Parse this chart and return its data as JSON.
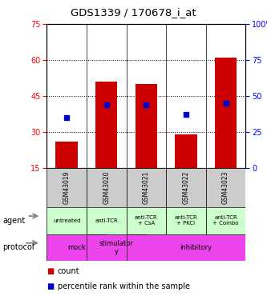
{
  "title": "GDS1339 / 170678_i_at",
  "samples": [
    "GSM43019",
    "GSM43020",
    "GSM43021",
    "GSM43022",
    "GSM43023"
  ],
  "bar_bottoms": [
    15,
    15,
    15,
    15,
    15
  ],
  "bar_tops": [
    26,
    51,
    50,
    29,
    61
  ],
  "percentile_ranks": [
    35,
    44,
    44,
    37,
    45
  ],
  "ylim_left": [
    15,
    75
  ],
  "ylim_right": [
    0,
    100
  ],
  "yticks_left": [
    15,
    30,
    45,
    60,
    75
  ],
  "yticks_right": [
    0,
    25,
    50,
    75,
    100
  ],
  "bar_color": "#cc0000",
  "dot_color": "#0000cc",
  "agent_labels": [
    "untreated",
    "anti-TCR",
    "anti-TCR\n+ CsA",
    "anti-TCR\n+ PKCi",
    "anti-TCR\n+ Combo"
  ],
  "agent_bg": "#ccffcc",
  "sample_bg": "#cccccc",
  "protocol_bg": "#ee44ee",
  "legend_count_color": "#cc0000",
  "legend_rank_color": "#0000cc",
  "grid_dotted": [
    30,
    45,
    60
  ]
}
